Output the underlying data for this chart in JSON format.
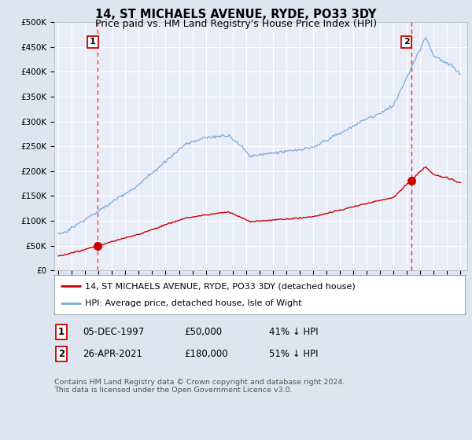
{
  "title": "14, ST MICHAELS AVENUE, RYDE, PO33 3DY",
  "subtitle": "Price paid vs. HM Land Registry's House Price Index (HPI)",
  "ylim": [
    0,
    500000
  ],
  "ytick_labels": [
    "£0",
    "£50K",
    "£100K",
    "£150K",
    "£200K",
    "£250K",
    "£300K",
    "£350K",
    "£400K",
    "£450K",
    "£500K"
  ],
  "ytick_values": [
    0,
    50000,
    100000,
    150000,
    200000,
    250000,
    300000,
    350000,
    400000,
    450000,
    500000
  ],
  "xlim_start": 1994.7,
  "xlim_end": 2025.5,
  "background_color": "#dde5f0",
  "plot_bg_color": "#e8edf8",
  "grid_color": "#ffffff",
  "red_line_color": "#cc0000",
  "blue_line_color": "#7aaadd",
  "sale1_x": 1997.92,
  "sale1_y": 50000,
  "sale1_label": "1",
  "sale2_x": 2021.32,
  "sale2_y": 180000,
  "sale2_label": "2",
  "marker_color": "#cc0000",
  "dashed_color": "#dd3333",
  "legend_label_red": "14, ST MICHAELS AVENUE, RYDE, PO33 3DY (detached house)",
  "legend_label_blue": "HPI: Average price, detached house, Isle of Wight",
  "annotation1_date": "05-DEC-1997",
  "annotation1_price": "£50,000",
  "annotation1_hpi": "41% ↓ HPI",
  "annotation2_date": "26-APR-2021",
  "annotation2_price": "£180,000",
  "annotation2_hpi": "51% ↓ HPI",
  "footer": "Contains HM Land Registry data © Crown copyright and database right 2024.\nThis data is licensed under the Open Government Licence v3.0.",
  "title_fontsize": 10.5,
  "subtitle_fontsize": 9,
  "tick_fontsize": 7.5,
  "legend_fontsize": 8,
  "ann_fontsize": 8.5,
  "footer_fontsize": 6.8
}
